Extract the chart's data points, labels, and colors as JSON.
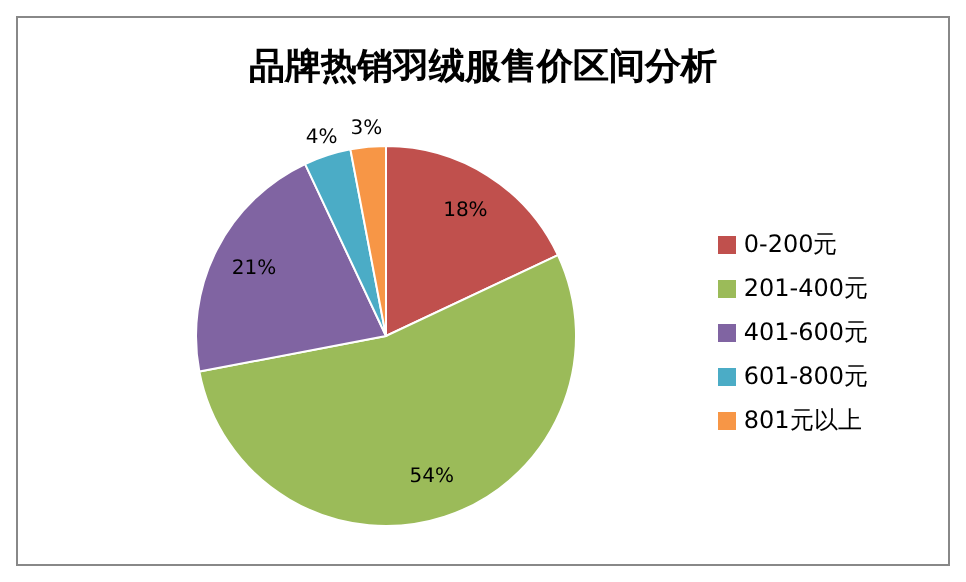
{
  "chart_data": {
    "type": "pie",
    "title": "品牌热销羽绒服售价区间分析",
    "categories": [
      "0-200元",
      "201-400元",
      "401-600元",
      "601-800元",
      "801元以上"
    ],
    "values": [
      18,
      54,
      21,
      4,
      3
    ],
    "colors": [
      "#c0504d",
      "#9bbb59",
      "#8064a2",
      "#4bacc6",
      "#f79646"
    ],
    "value_labels": [
      "18%",
      "54%",
      "21%",
      "4%",
      "3%"
    ],
    "legend": "right"
  }
}
